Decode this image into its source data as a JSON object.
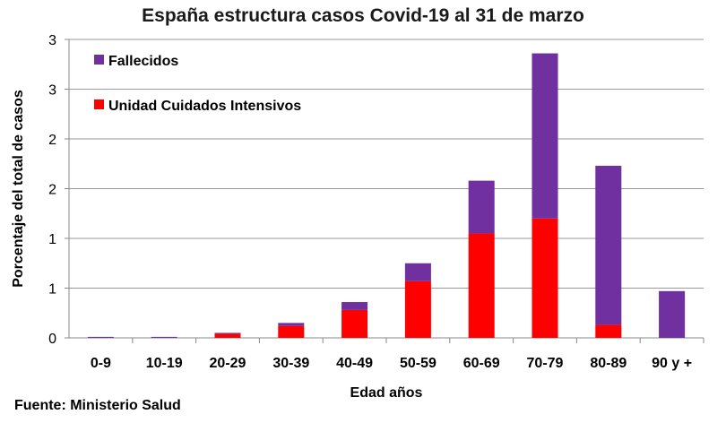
{
  "chart_data": {
    "type": "bar",
    "stacked": true,
    "title": "España estructura casos Covid-19 al 31 de marzo",
    "xlabel": "Edad años",
    "ylabel": "Porcentaje del total de casos",
    "categories": [
      "0-9",
      "10-19",
      "20-29",
      "30-39",
      "40-49",
      "50-59",
      "60-69",
      "70-79",
      "80-89",
      "90 y +"
    ],
    "ylim": [
      0,
      3
    ],
    "yticks": [
      0,
      0.5,
      1,
      1.5,
      2,
      2.5,
      3
    ],
    "ytick_labels": [
      "0",
      "1",
      "1",
      "2",
      "2",
      "3",
      "3"
    ],
    "grid": true,
    "legend_position": "top-left",
    "series": [
      {
        "name": "Unidad Cuidados Intensivos",
        "color": "#ff0000",
        "values": [
          0,
          0,
          0.04,
          0.12,
          0.28,
          0.57,
          1.05,
          1.2,
          0.13,
          0
        ]
      },
      {
        "name": "Fallecidos",
        "color": "#7030a0",
        "values": [
          0.01,
          0.01,
          0.01,
          0.03,
          0.08,
          0.18,
          0.53,
          1.66,
          1.6,
          0.47
        ]
      }
    ],
    "legend_order": [
      1,
      0
    ]
  },
  "source": "Fuente: Ministerio Salud"
}
